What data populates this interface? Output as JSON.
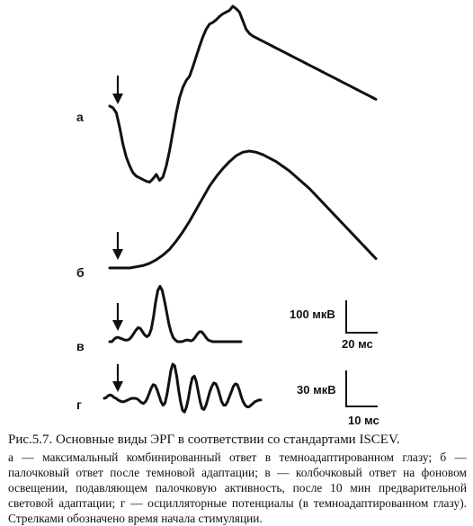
{
  "chart_data": {
    "type": "line",
    "title": "",
    "panels": [
      {
        "label": "а",
        "name": "максимальный комбинированный ответ в темноадаптированном глазу",
        "x": [
          0,
          1,
          2,
          3,
          4,
          5,
          6,
          7,
          8,
          9,
          10,
          11,
          12,
          13,
          14,
          15,
          16,
          17,
          18,
          19,
          20,
          21,
          22,
          23,
          24,
          25,
          26,
          27,
          28,
          29,
          30,
          31,
          32,
          33,
          34,
          35,
          36,
          37,
          38,
          39,
          40,
          41,
          42,
          43,
          44,
          45,
          46,
          47,
          48,
          49,
          50,
          51,
          52,
          53,
          54,
          55,
          56,
          57,
          58,
          59,
          60,
          61,
          62,
          63,
          64,
          65,
          66,
          67,
          68,
          69,
          70,
          71,
          72,
          73,
          74,
          75,
          76,
          77,
          78,
          79,
          80
        ],
        "values": [
          0,
          -2,
          -8,
          -25,
          -45,
          -60,
          -70,
          -78,
          -82,
          -84,
          -86,
          -88,
          -89,
          -85,
          -80,
          -87,
          -83,
          -70,
          -52,
          -30,
          -8,
          10,
          22,
          30,
          35,
          46,
          58,
          70,
          81,
          90,
          96,
          98,
          101,
          105,
          108,
          110,
          112,
          117,
          114,
          110,
          100,
          90,
          85,
          82,
          80,
          78,
          76,
          74,
          72,
          70,
          68,
          66,
          64,
          62,
          60,
          58,
          56,
          54,
          52,
          50,
          48,
          46,
          44,
          42,
          40,
          38,
          36,
          34,
          32,
          30,
          28,
          26,
          24,
          22,
          20,
          18,
          16,
          14,
          12,
          10,
          8
        ]
      },
      {
        "label": "б",
        "name": "палочковый ответ после темновой адаптации",
        "x": [
          0,
          1,
          2,
          3,
          4,
          5,
          6,
          7,
          8,
          9,
          10,
          11,
          12,
          13,
          14,
          15,
          16,
          17,
          18,
          19,
          20,
          21,
          22,
          23,
          24,
          25,
          26,
          27,
          28,
          29,
          30,
          31,
          32,
          33,
          34,
          35,
          36,
          37,
          38,
          39,
          40
        ],
        "values": [
          0,
          0,
          0,
          0,
          1,
          2,
          4,
          7,
          11,
          16,
          23,
          31,
          40,
          50,
          60,
          70,
          78,
          85,
          91,
          96,
          99,
          100,
          99,
          97,
          94,
          91,
          87,
          83,
          78,
          73,
          68,
          62,
          56,
          50,
          44,
          38,
          32,
          26,
          20,
          14,
          8
        ]
      },
      {
        "label": "в",
        "name": "колбочковый ответ на фоновом освещении",
        "x": [
          0,
          1,
          2,
          3,
          4,
          5,
          6,
          7,
          8,
          9,
          10,
          11,
          12,
          13,
          14,
          15,
          16,
          17,
          18,
          19,
          20,
          21,
          22,
          23,
          24,
          25,
          26,
          27,
          28,
          29,
          30,
          31,
          32,
          33,
          34,
          35,
          36,
          37,
          38,
          39,
          40,
          41,
          42,
          43,
          44,
          45,
          46,
          47,
          48,
          49,
          50,
          51,
          52,
          53,
          54,
          55,
          56,
          57,
          58,
          59,
          60
        ],
        "values": [
          0,
          0,
          3,
          5,
          5,
          4,
          3,
          2,
          2,
          3,
          6,
          10,
          14,
          17,
          16,
          12,
          8,
          6,
          8,
          15,
          30,
          48,
          62,
          67,
          62,
          50,
          36,
          22,
          12,
          5,
          2,
          0,
          0,
          0,
          1,
          2,
          2,
          1,
          2,
          5,
          9,
          12,
          12,
          9,
          5,
          2,
          1,
          0,
          0,
          0,
          0,
          0,
          0,
          0,
          0,
          0,
          0,
          0,
          0,
          0,
          0
        ]
      },
      {
        "label": "г",
        "name": "осцилляторные потенциалы",
        "x": [
          0,
          1,
          2,
          3,
          4,
          5,
          6,
          7,
          8,
          9,
          10,
          11,
          12,
          13,
          14,
          15,
          16,
          17,
          18,
          19,
          20,
          21,
          22,
          23,
          24,
          25,
          26,
          27,
          28,
          29,
          30,
          31,
          32,
          33,
          34,
          35,
          36,
          37,
          38,
          39,
          40,
          41,
          42,
          43,
          44,
          45,
          46,
          47,
          48,
          49,
          50,
          51,
          52,
          53,
          54,
          55,
          56,
          57,
          58,
          59,
          60,
          61,
          62,
          63,
          64,
          65,
          66,
          67,
          68,
          69,
          70,
          71,
          72,
          73,
          74,
          75,
          76,
          77,
          78,
          79,
          80
        ],
        "values": [
          0,
          1,
          3,
          4,
          3,
          1,
          0,
          -2,
          -3,
          -4,
          -4,
          -3,
          -2,
          -1,
          0,
          0,
          0,
          -1,
          -3,
          -5,
          -6,
          -4,
          0,
          6,
          12,
          16,
          15,
          10,
          3,
          -4,
          -8,
          -6,
          4,
          18,
          32,
          40,
          38,
          26,
          10,
          -4,
          -14,
          -16,
          -10,
          0,
          14,
          24,
          26,
          20,
          8,
          -4,
          -12,
          -13,
          -8,
          0,
          8,
          14,
          18,
          17,
          12,
          4,
          -4,
          -8,
          -8,
          -4,
          2,
          8,
          14,
          17,
          16,
          10,
          2,
          -4,
          -8,
          -10,
          -10,
          -8,
          -6,
          -4,
          -3,
          -2,
          -2
        ]
      }
    ],
    "scale_bars": [
      {
        "amplitude": "100 мкВ",
        "time": "20 мс"
      },
      {
        "amplitude": "30 мкВ",
        "time": "10 мс"
      }
    ],
    "annotations": [
      "↓"
    ]
  },
  "caption": {
    "title": "Рис.5.7. Основные виды ЭРГ в соответствии со стандартами ISCEV.",
    "body": "а — максимальный комбинированный ответ в темноадаптированном глазу; б — палочковый ответ после темновой адаптации; в — колбочковый ответ на фоновом освещении, подавляющем палочковую активность, после 10 мин предварительной световой адаптации; г — осцилляторные потенциалы (в темноадаптированном глазу). Стрелками обозначено время начала стимуляции."
  }
}
